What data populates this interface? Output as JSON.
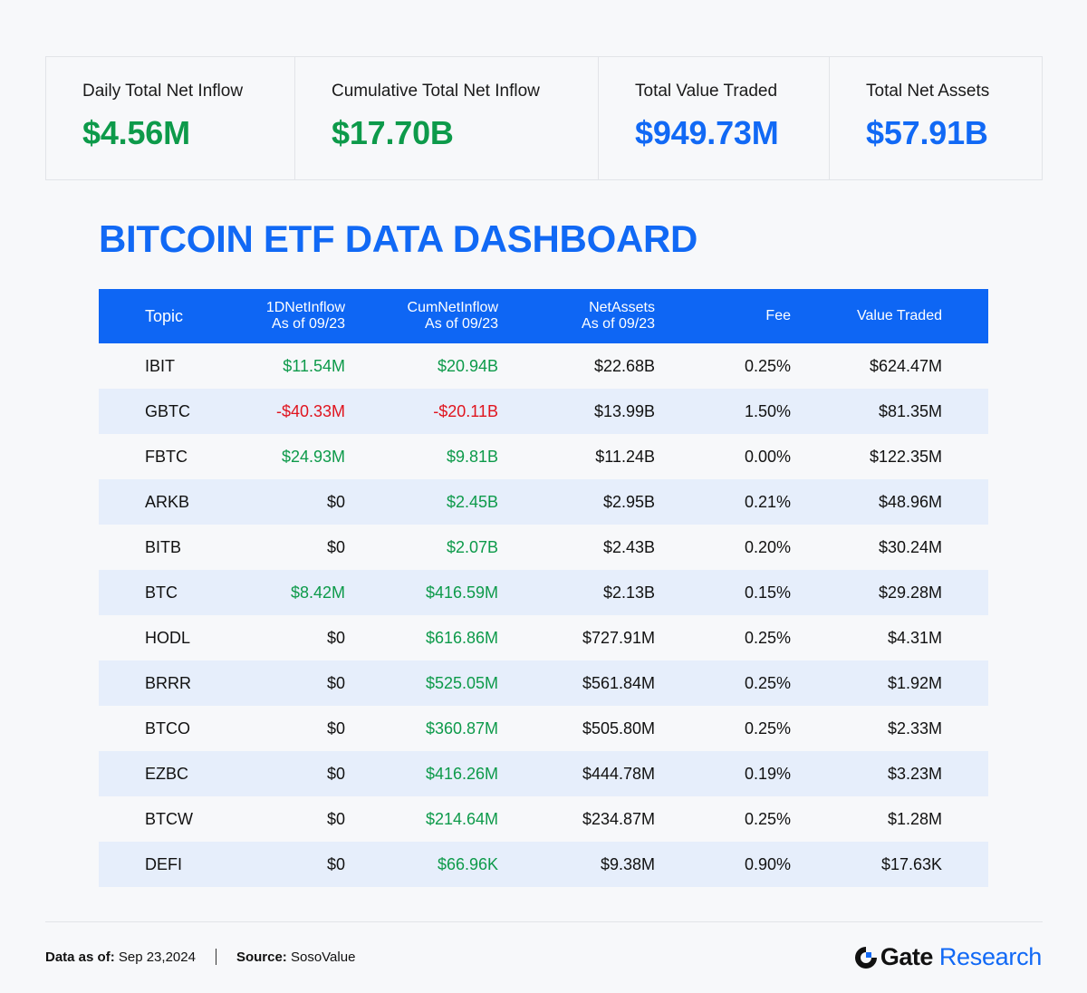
{
  "stats": [
    {
      "label": "Daily Total Net Inflow",
      "value": "$4.56M",
      "color": "green"
    },
    {
      "label": "Cumulative Total Net Inflow",
      "value": "$17.70B",
      "color": "green"
    },
    {
      "label": "Total Value Traded",
      "value": "$949.73M",
      "color": "blue"
    },
    {
      "label": "Total Net Assets",
      "value": "$57.91B",
      "color": "blue"
    }
  ],
  "title": "BITCOIN ETF DATA DASHBOARD",
  "table": {
    "headers": {
      "topic": "Topic",
      "inflow": "1DNetInflow",
      "inflow_sub": "As of 09/23",
      "cum": "CumNetInflow",
      "cum_sub": "As of 09/23",
      "net": "NetAssets",
      "net_sub": "As of 09/23",
      "fee": "Fee",
      "value": "Value Traded"
    },
    "rows": [
      {
        "topic": "IBIT",
        "inflow": "$11.54M",
        "inflow_color": "green",
        "cum": "$20.94B",
        "cum_color": "green",
        "net": "$22.68B",
        "fee": "0.25%",
        "value": "$624.47M"
      },
      {
        "topic": "GBTC",
        "inflow": "-$40.33M",
        "inflow_color": "red",
        "cum": "-$20.11B",
        "cum_color": "red",
        "net": "$13.99B",
        "fee": "1.50%",
        "value": "$81.35M"
      },
      {
        "topic": "FBTC",
        "inflow": "$24.93M",
        "inflow_color": "green",
        "cum": "$9.81B",
        "cum_color": "green",
        "net": "$11.24B",
        "fee": "0.00%",
        "value": "$122.35M"
      },
      {
        "topic": "ARKB",
        "inflow": "$0",
        "inflow_color": "black",
        "cum": "$2.45B",
        "cum_color": "green",
        "net": "$2.95B",
        "fee": "0.21%",
        "value": "$48.96M"
      },
      {
        "topic": "BITB",
        "inflow": "$0",
        "inflow_color": "black",
        "cum": "$2.07B",
        "cum_color": "green",
        "net": "$2.43B",
        "fee": "0.20%",
        "value": "$30.24M"
      },
      {
        "topic": "BTC",
        "inflow": "$8.42M",
        "inflow_color": "green",
        "cum": "$416.59M",
        "cum_color": "green",
        "net": "$2.13B",
        "fee": "0.15%",
        "value": "$29.28M"
      },
      {
        "topic": "HODL",
        "inflow": "$0",
        "inflow_color": "black",
        "cum": "$616.86M",
        "cum_color": "green",
        "net": "$727.91M",
        "fee": "0.25%",
        "value": "$4.31M"
      },
      {
        "topic": "BRRR",
        "inflow": "$0",
        "inflow_color": "black",
        "cum": "$525.05M",
        "cum_color": "green",
        "net": "$561.84M",
        "fee": "0.25%",
        "value": "$1.92M"
      },
      {
        "topic": "BTCO",
        "inflow": "$0",
        "inflow_color": "black",
        "cum": "$360.87M",
        "cum_color": "green",
        "net": "$505.80M",
        "fee": "0.25%",
        "value": "$2.33M"
      },
      {
        "topic": "EZBC",
        "inflow": "$0",
        "inflow_color": "black",
        "cum": "$416.26M",
        "cum_color": "green",
        "net": "$444.78M",
        "fee": "0.19%",
        "value": "$3.23M"
      },
      {
        "topic": "BTCW",
        "inflow": "$0",
        "inflow_color": "black",
        "cum": "$214.64M",
        "cum_color": "green",
        "net": "$234.87M",
        "fee": "0.25%",
        "value": "$1.28M"
      },
      {
        "topic": "DEFI",
        "inflow": "$0",
        "inflow_color": "black",
        "cum": "$66.96K",
        "cum_color": "green",
        "net": "$9.38M",
        "fee": "0.90%",
        "value": "$17.63K"
      }
    ]
  },
  "footer": {
    "data_label": "Data as of:",
    "data_value": "Sep 23,2024",
    "source_label": "Source:",
    "source_value": "SosoValue"
  },
  "logo": {
    "icon": "gate-logo-icon",
    "brand": "Gate",
    "suffix": "Research"
  },
  "colors": {
    "green": "#0d9a4a",
    "red": "#e0141e",
    "blue": "#1169f5",
    "header_bg": "#0e66f4",
    "row_alt": "#e6eefb"
  }
}
